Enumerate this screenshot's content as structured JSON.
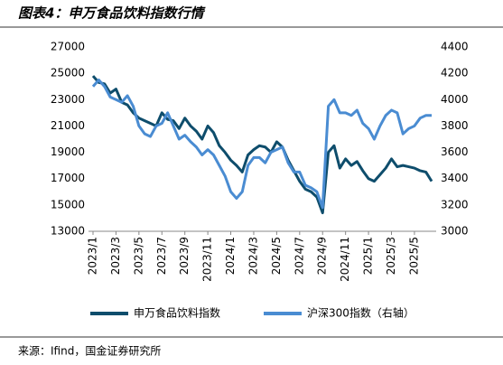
{
  "chart_data": {
    "type": "line",
    "title": "图表4：申万食品饮料指数行情",
    "source": "来源：Ifind，国金证券研究所",
    "categories": [
      "2023/1",
      null,
      null,
      null,
      "2023/3",
      null,
      null,
      null,
      "2023/5",
      null,
      null,
      null,
      "2023/7",
      null,
      null,
      null,
      "2023/9",
      null,
      null,
      null,
      "2023/11",
      null,
      null,
      null,
      "2024/1",
      null,
      null,
      null,
      "2024/3",
      null,
      null,
      null,
      "2024/5",
      null,
      null,
      null,
      "2024/7",
      null,
      null,
      null,
      "2024/9",
      null,
      null,
      null,
      "2024/11",
      null,
      null,
      null,
      "2025/1",
      null,
      null,
      null,
      "2025/3",
      null,
      null,
      null,
      "2025/5",
      null,
      null,
      null
    ],
    "series": [
      {
        "name": "申万食品饮料指数",
        "color": "#0e4d6c",
        "axis": "y",
        "values": [
          24800,
          24300,
          24200,
          23500,
          23800,
          22800,
          22600,
          22000,
          21600,
          21400,
          21200,
          21000,
          22000,
          21500,
          21400,
          20800,
          21600,
          21000,
          20600,
          20000,
          21000,
          20500,
          19500,
          19000,
          18400,
          18000,
          17500,
          18800,
          19200,
          19500,
          19400,
          19000,
          19800,
          19400,
          18400,
          17600,
          16800,
          16200,
          16000,
          15600,
          14400,
          19000,
          19500,
          17800,
          18500,
          18000,
          18300,
          17600,
          17000,
          16800,
          17300,
          17800,
          18500,
          17900,
          18000,
          17900,
          17800,
          17600,
          17500,
          16800
        ]
      },
      {
        "name": "沪深300指数（右轴）",
        "color": "#4a8cd2",
        "axis": "y2",
        "values": [
          4100,
          4150,
          4100,
          4020,
          4000,
          3980,
          4030,
          3950,
          3800,
          3740,
          3720,
          3800,
          3820,
          3900,
          3800,
          3700,
          3730,
          3680,
          3640,
          3580,
          3620,
          3580,
          3500,
          3420,
          3300,
          3250,
          3300,
          3500,
          3560,
          3560,
          3520,
          3600,
          3620,
          3640,
          3520,
          3450,
          3450,
          3350,
          3330,
          3300,
          3180,
          3950,
          4000,
          3900,
          3900,
          3880,
          3920,
          3820,
          3780,
          3700,
          3800,
          3880,
          3920,
          3900,
          3740,
          3780,
          3800,
          3860,
          3880,
          3880
        ]
      }
    ],
    "ylim": [
      13000,
      27000
    ],
    "yticks": [
      13000,
      15000,
      17000,
      19000,
      21000,
      23000,
      25000,
      27000
    ],
    "y2lim": [
      3000,
      4400
    ],
    "y2ticks": [
      3000,
      3200,
      3400,
      3600,
      3800,
      4000,
      4200,
      4400
    ]
  }
}
